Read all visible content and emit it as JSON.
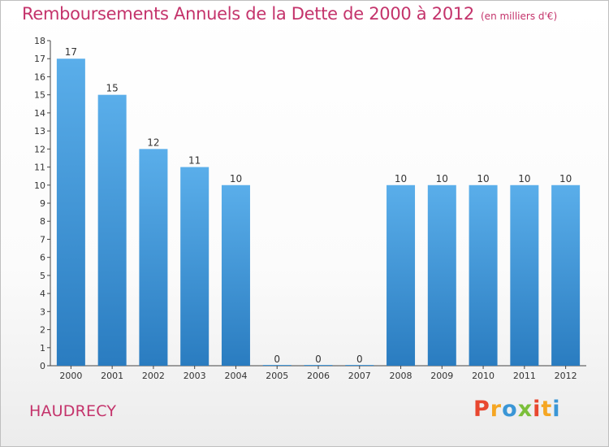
{
  "header": {
    "title": "Remboursements Annuels de la Dette de 2000 à 2012",
    "unit": "(en milliers d'€)"
  },
  "footer": {
    "city": "HAUDRECY",
    "logo_letters": [
      "P",
      "r",
      "o",
      "x",
      "i",
      "t",
      "i"
    ]
  },
  "colors": {
    "title": "#c4336b",
    "bar_top": "#5aaeea",
    "bar_bottom": "#2a7cc0",
    "logo": [
      "#e8472f",
      "#f5a623",
      "#3a96d6",
      "#7bbf3a",
      "#e8472f",
      "#f5a623",
      "#3a96d6"
    ]
  },
  "chart_data": {
    "type": "bar",
    "title": "Remboursements Annuels de la Dette de 2000 à 2012",
    "xlabel": "",
    "ylabel": "",
    "ylim": [
      0,
      18
    ],
    "yticks": [
      0,
      1,
      2,
      3,
      4,
      5,
      6,
      7,
      8,
      9,
      10,
      11,
      12,
      13,
      14,
      15,
      16,
      17,
      18
    ],
    "categories": [
      "2000",
      "2001",
      "2002",
      "2003",
      "2004",
      "2005",
      "2006",
      "2007",
      "2008",
      "2009",
      "2010",
      "2011",
      "2012"
    ],
    "values": [
      17,
      15,
      12,
      11,
      10,
      0,
      0,
      0,
      10,
      10,
      10,
      10,
      10
    ],
    "data_labels": [
      "17",
      "15",
      "12",
      "11",
      "10",
      "0",
      "0",
      "0",
      "10",
      "10",
      "10",
      "10",
      "10"
    ]
  }
}
